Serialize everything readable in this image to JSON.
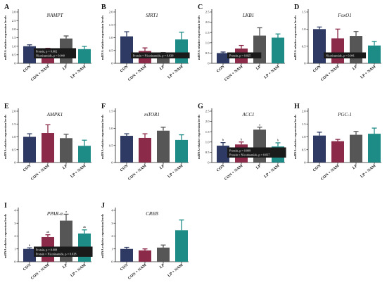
{
  "figure": {
    "colors": {
      "CON": "#2e3a63",
      "CON + NAM": "#8c2a49",
      "LP": "#565656",
      "LP + NAM": "#1e8c86",
      "axis": "#222222",
      "stat_box": "#1a1a1a",
      "stat_text": "#ffffff"
    }
  },
  "chart_data": [
    {
      "type": "bar",
      "panel": "A",
      "title": "NAMPT",
      "ylabel": "mRNA relative expression levels",
      "categories": [
        "CON",
        "CON + NAM",
        "LP",
        "LP + NAM"
      ],
      "ylim": [
        0,
        3
      ],
      "yticks": [
        0,
        0.5,
        1.0,
        1.5,
        2.0,
        2.5,
        3.0
      ],
      "values": [
        1.0,
        0.78,
        1.45,
        0.83
      ],
      "errors": [
        0.08,
        0.1,
        0.15,
        0.16
      ],
      "sig_letters": [
        "",
        "",
        "",
        ""
      ],
      "stats": [
        "Protein, p = 0.002",
        "Nicotinamide, p = 0.040"
      ]
    },
    {
      "type": "bar",
      "panel": "B",
      "title": "SIRT1",
      "ylabel": "mRNA relative expression levels",
      "categories": [
        "CON",
        "CON + NAM",
        "LP",
        "LP + NAM"
      ],
      "ylim": [
        0,
        2
      ],
      "yticks": [
        0,
        0.5,
        1.0,
        1.5,
        2.0
      ],
      "values": [
        1.05,
        0.48,
        0.37,
        0.93
      ],
      "errors": [
        0.18,
        0.12,
        0.05,
        0.28
      ],
      "sig_letters": [
        "",
        "",
        "",
        ""
      ],
      "stats": [
        "Protein × Nicotinamide, p = 0.038"
      ]
    },
    {
      "type": "bar",
      "panel": "C",
      "title": "LKB1",
      "ylabel": "mRNA relative expression levels",
      "categories": [
        "CON",
        "CON + NAM",
        "LP",
        "LP + NAM"
      ],
      "ylim": [
        0,
        2.5
      ],
      "yticks": [
        0,
        0.5,
        1.0,
        1.5,
        2.0,
        2.5
      ],
      "values": [
        0.5,
        0.72,
        1.35,
        1.25
      ],
      "errors": [
        0.05,
        0.15,
        0.38,
        0.18
      ],
      "sig_letters": [
        "",
        "",
        "",
        ""
      ],
      "stats": [
        "Protein, p = 0.025"
      ]
    },
    {
      "type": "bar",
      "panel": "D",
      "title": "FoxO1",
      "ylabel": "mRNA relative expression levels",
      "categories": [
        "CON",
        "CON + NAM",
        "LP",
        "LP + NAM"
      ],
      "ylim": [
        0,
        1.5
      ],
      "yticks": [
        0,
        0.5,
        1.0,
        1.5
      ],
      "values": [
        1.0,
        0.73,
        0.8,
        0.52
      ],
      "errors": [
        0.06,
        0.27,
        0.13,
        0.12
      ],
      "sig_letters": [
        "",
        "",
        "",
        ""
      ],
      "stats": [
        "Nicotinamide, p = 0.041"
      ]
    },
    {
      "type": "bar",
      "panel": "E",
      "title": "AMPK1",
      "ylabel": "mRNA relative expression levels",
      "categories": [
        "CON",
        "CON + NAM",
        "LP",
        "LP + NAM"
      ],
      "ylim": [
        0,
        2
      ],
      "yticks": [
        0,
        0.5,
        1.0,
        1.5,
        2.0
      ],
      "values": [
        1.0,
        1.15,
        0.95,
        0.65
      ],
      "errors": [
        0.12,
        0.32,
        0.15,
        0.22
      ],
      "sig_letters": [
        "",
        "",
        "",
        ""
      ],
      "stats": []
    },
    {
      "type": "bar",
      "panel": "F",
      "title": "mTOR1",
      "ylabel": "mRNA relative expression levels",
      "categories": [
        "CON",
        "CON + NAM",
        "LP",
        "LP + NAM"
      ],
      "ylim": [
        0,
        1.5
      ],
      "yticks": [
        0,
        0.5,
        1.0,
        1.5
      ],
      "values": [
        0.78,
        0.72,
        0.93,
        0.66
      ],
      "errors": [
        0.06,
        0.12,
        0.1,
        0.15
      ],
      "sig_letters": [
        "",
        "",
        "",
        ""
      ],
      "stats": []
    },
    {
      "type": "bar",
      "panel": "G",
      "title": "ACC1",
      "ylabel": "mRNA relative expression levels",
      "categories": [
        "CON",
        "CON + NAM",
        "LP",
        "LP + NAM"
      ],
      "ylim": [
        0,
        2.5
      ],
      "yticks": [
        0,
        0.5,
        1.0,
        1.5,
        2.0,
        2.5
      ],
      "values": [
        0.82,
        0.88,
        1.6,
        0.78
      ],
      "errors": [
        0.15,
        0.12,
        0.12,
        0.18
      ],
      "sig_letters": [
        "b",
        "b",
        "a",
        "b"
      ],
      "stats": [
        "Protein, p = 0.009",
        "Protein × Nicotinamide, p = 0.037"
      ]
    },
    {
      "type": "bar",
      "panel": "H",
      "title": "PGC-1",
      "ylabel": "mRNA relative expression levels",
      "categories": [
        "CON",
        "CON + NAM",
        "LP",
        "LP + NAM"
      ],
      "ylim": [
        0,
        2
      ],
      "yticks": [
        0,
        0.5,
        1.0,
        1.5,
        2.0
      ],
      "values": [
        1.05,
        0.83,
        1.08,
        1.12
      ],
      "errors": [
        0.13,
        0.07,
        0.13,
        0.22
      ],
      "sig_letters": [
        "",
        "",
        "",
        ""
      ],
      "stats": []
    },
    {
      "type": "bar",
      "panel": "I",
      "title": "PPAR-α",
      "ylabel": "mRNA relative expression levels",
      "categories": [
        "CON",
        "CON + NAM",
        "LP",
        "LP + NAM"
      ],
      "ylim": [
        0,
        4
      ],
      "yticks": [
        0,
        1,
        2,
        3,
        4
      ],
      "values": [
        1.0,
        1.92,
        3.2,
        2.2
      ],
      "errors": [
        0.08,
        0.18,
        0.5,
        0.28
      ],
      "sig_letters": [
        "b",
        "ab",
        "a",
        "ab"
      ],
      "stats": [
        "Protein, p = 0.008",
        "Protein × Nicotinamide, p = 0.028"
      ]
    },
    {
      "type": "bar",
      "panel": "J",
      "title": "CREB",
      "ylabel": "mRNA relative expression levels",
      "categories": [
        "CON",
        "CON + NAM",
        "LP",
        "LP + NAM"
      ],
      "ylim": [
        0,
        4
      ],
      "yticks": [
        0,
        1,
        2,
        3,
        4
      ],
      "values": [
        1.0,
        0.88,
        1.1,
        2.45
      ],
      "errors": [
        0.12,
        0.12,
        0.2,
        0.8
      ],
      "sig_letters": [
        "",
        "",
        "",
        ""
      ],
      "stats": []
    }
  ]
}
